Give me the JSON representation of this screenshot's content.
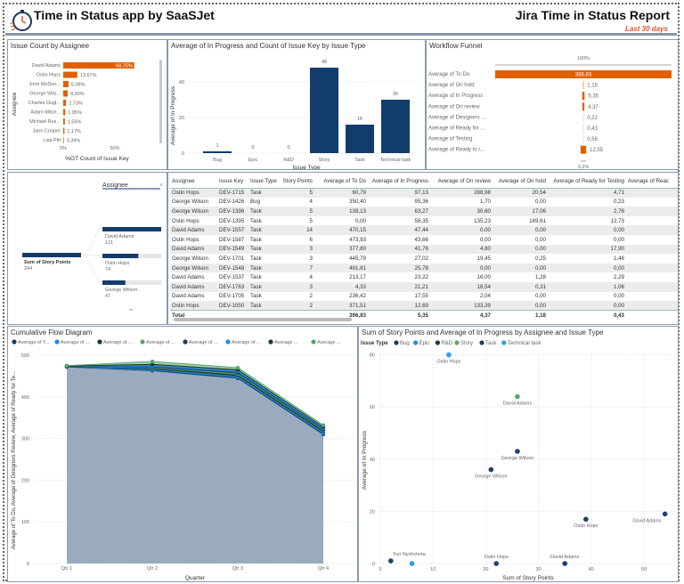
{
  "header": {
    "title": "Time in Status app by SaaSJet",
    "report_title": "Jira Time in Status Report",
    "period": "Last 30 days",
    "accent": "#e0502a"
  },
  "issue_count": {
    "title": "Issue Count by Assignee",
    "y_label": "Assignee",
    "x_label": "%GT Count of Issue Key",
    "ticks": [
      "0%",
      "50%"
    ],
    "bar_color": "#e06000",
    "items": [
      {
        "name": "David Adams",
        "pct": 68.75,
        "label": "68,75%"
      },
      {
        "name": "Ostin Hops",
        "pct": 13.67,
        "label": "13,67%"
      },
      {
        "name": "Jonh McDon...",
        "pct": 5.08,
        "label": "5,08%"
      },
      {
        "name": "George Wils...",
        "pct": 4.3,
        "label": "4,30%"
      },
      {
        "name": "Charles Dugl...",
        "pct": 2.73,
        "label": "2,73%"
      },
      {
        "name": "Adam Mitch...",
        "pct": 1.95,
        "label": "1,95%"
      },
      {
        "name": "Michael Rus...",
        "pct": 1.56,
        "label": "1,56%"
      },
      {
        "name": "Jane Cooper",
        "pct": 1.17,
        "label": "1,17%"
      },
      {
        "name": "Lisa Pitt",
        "pct": 0.39,
        "label": "0,39%"
      }
    ]
  },
  "issue_type_chart": {
    "title": "Average of In Progress and Count of Issue Key by Issue Type",
    "y_label": "Average of In Progress",
    "x_label": "Issue Type",
    "yticks": [
      "0",
      "20",
      "40"
    ],
    "bar_color": "#123c6b",
    "categories": [
      "Bug",
      "Epic",
      "R&D",
      "Story",
      "Task",
      "Technical task"
    ],
    "values": [
      1,
      0,
      0,
      48,
      16,
      30
    ],
    "labels": [
      "1",
      "0",
      "0",
      "48",
      "16",
      "30"
    ]
  },
  "funnel": {
    "title": "Workflow Funnel",
    "top_label": "100%",
    "bottom_label": "3,2%",
    "bar_color": "#e06000",
    "items": [
      {
        "name": "Average of To Do",
        "value": 396.83,
        "label": "396,83"
      },
      {
        "name": "Average of On hold",
        "value": 1.18,
        "label": "1,18"
      },
      {
        "name": "Average of In Progress",
        "value": 5.35,
        "label": "5,35"
      },
      {
        "name": "Average of On review",
        "value": 4.37,
        "label": "4,37"
      },
      {
        "name": "Average of Designers ...",
        "value": 0.22,
        "label": "0,22"
      },
      {
        "name": "Average of Ready for ...",
        "value": 0.43,
        "label": "0,43"
      },
      {
        "name": "Average of Testing",
        "value": 0.56,
        "label": "0,56"
      },
      {
        "name": "Average of Ready to r...",
        "value": 12.55,
        "label": "12,55"
      }
    ]
  },
  "decomp": {
    "level_title": "Assignee",
    "close": "×",
    "root": {
      "label": "Sum of Story Points",
      "value": "244"
    },
    "nodes": [
      {
        "name": "David Adams",
        "value": "121",
        "frac": 1.0
      },
      {
        "name": "Ostin Hops",
        "value": "74",
        "frac": 0.61
      },
      {
        "name": "George Wilson",
        "value": "47",
        "frac": 0.39
      }
    ],
    "more": "⌄"
  },
  "table": {
    "columns": [
      "Assignee",
      "Issue Key",
      "Issue Type",
      "Story Points",
      "Average of To Do",
      "Average of In Progress",
      "Average of On review",
      "Average of On hold",
      "Average of Ready for Testing",
      "Average of Reac"
    ],
    "rows": [
      [
        "Ostin Hops",
        "DEV-1715",
        "Task",
        "5",
        "60,79",
        "97,13",
        "288,98",
        "20,54",
        "4,71",
        ""
      ],
      [
        "George Wilson",
        "DEV-1426",
        "Bug",
        "4",
        "350,40",
        "95,36",
        "1,70",
        "0,00",
        "0,23",
        ""
      ],
      [
        "George Wilson",
        "DEV-1396",
        "Task",
        "5",
        "139,13",
        "63,27",
        "30,60",
        "17,06",
        "2,78",
        ""
      ],
      [
        "Ostin Hops",
        "DEV-1395",
        "Task",
        "5",
        "0,00",
        "58,35",
        "135,23",
        "169,61",
        "12,73",
        ""
      ],
      [
        "David Adams",
        "DEV-1557",
        "Task",
        "14",
        "470,15",
        "47,44",
        "0,00",
        "0,00",
        "0,00",
        ""
      ],
      [
        "Ostin Hops",
        "DEV-1587",
        "Task",
        "6",
        "473,93",
        "43,66",
        "0,00",
        "0,00",
        "0,00",
        ""
      ],
      [
        "David Adams",
        "DEV-1549",
        "Task",
        "3",
        "377,80",
        "41,76",
        "4,80",
        "0,00",
        "17,90",
        ""
      ],
      [
        "George Wilson",
        "DEV-1701",
        "Task",
        "3",
        "445,79",
        "27,02",
        "19,45",
        "0,25",
        "1,46",
        ""
      ],
      [
        "George Wilson",
        "DEV-1548",
        "Task",
        "7",
        "491,81",
        "25,78",
        "0,00",
        "0,00",
        "0,00",
        ""
      ],
      [
        "David Adams",
        "DEV-1537",
        "Task",
        "4",
        "213,17",
        "23,22",
        "16,00",
        "1,28",
        "2,29",
        ""
      ],
      [
        "David Adams",
        "DEV-1763",
        "Task",
        "3",
        "4,33",
        "21,21",
        "18,54",
        "0,31",
        "1,06",
        ""
      ],
      [
        "David Adams",
        "DEV-1705",
        "Task",
        "2",
        "236,42",
        "17,55",
        "2,04",
        "0,00",
        "0,00",
        ""
      ],
      [
        "Ostin Hops",
        "DEV-1050",
        "Task",
        "2",
        "371,51",
        "12,69",
        "133,39",
        "0,00",
        "0,00",
        ""
      ]
    ],
    "total": [
      "Total",
      "",
      "",
      "",
      "396,83",
      "5,35",
      "4,37",
      "1,18",
      "0,43",
      ""
    ]
  },
  "chart_data": [
    {
      "type": "area",
      "title": "Cumulative Flow Diagram",
      "xlabel": "Quarter",
      "ylabel": "Average of To Do, Average of Designers Review, Average of Ready for Te...",
      "ylim": [
        0,
        500
      ],
      "yticks": [
        0,
        100,
        200,
        300,
        400,
        500
      ],
      "grid": true,
      "legend": "top",
      "categories": [
        "Qtr 1",
        "Qtr 2",
        "Qtr 3",
        "Qtr 4"
      ],
      "series": [
        {
          "name": "Average of T...",
          "color": "#123c6b",
          "values": [
            472,
            463,
            445,
            310
          ]
        },
        {
          "name": "Average of ...",
          "color": "#1f8cf0",
          "values": [
            473,
            465,
            448,
            313
          ]
        },
        {
          "name": "Average of ...",
          "color": "#1b3a2f",
          "values": [
            473,
            468,
            452,
            318
          ]
        },
        {
          "name": "Average of ...",
          "color": "#5aa56f",
          "values": [
            474,
            470,
            455,
            320
          ]
        },
        {
          "name": "Average of ...",
          "color": "#123c6b",
          "values": [
            474,
            472,
            458,
            322
          ]
        },
        {
          "name": "Average of ...",
          "color": "#1f8cf0",
          "values": [
            474,
            474,
            462,
            325
          ]
        },
        {
          "name": "Average ...",
          "color": "#1b3a2f",
          "values": [
            474,
            478,
            465,
            328
          ]
        },
        {
          "name": "Average ...",
          "color": "#5aa56f",
          "values": [
            475,
            485,
            470,
            332
          ]
        }
      ]
    },
    {
      "type": "scatter",
      "title": "Sum of Story Points and Average of In Progress by Assignee and Issue Type",
      "xlabel": "Sum of Story Points",
      "ylabel": "Average of In Progress",
      "xlim": [
        0,
        55
      ],
      "ylim": [
        0,
        80
      ],
      "xticks": [
        0,
        10,
        20,
        30,
        40,
        50
      ],
      "yticks": [
        0,
        20,
        40,
        60,
        80
      ],
      "grid": true,
      "legend": "top-left",
      "legend_title": "Issue Type",
      "legend_items": [
        {
          "name": "Bug",
          "color": "#123c6b"
        },
        {
          "name": "Epic",
          "color": "#1f8cf0"
        },
        {
          "name": "R&D",
          "color": "#1b3a2f"
        },
        {
          "name": "Story",
          "color": "#5aa56f"
        },
        {
          "name": "Task",
          "color": "#1d3f6e"
        },
        {
          "name": "Technical task",
          "color": "#2a9df4"
        }
      ],
      "points": [
        {
          "x": 13,
          "y": 80,
          "label": "Ostin Hops",
          "type": "Technical task"
        },
        {
          "x": 26,
          "y": 64,
          "label": "David Adams",
          "type": "Story"
        },
        {
          "x": 26,
          "y": 43,
          "label": "George Wilson",
          "type": "Task"
        },
        {
          "x": 21,
          "y": 36,
          "label": "George Wilson",
          "type": "Task"
        },
        {
          "x": 54,
          "y": 19,
          "label": "David Adams",
          "type": "Task"
        },
        {
          "x": 39,
          "y": 17,
          "label": "Ostin Hops",
          "type": "Task"
        },
        {
          "x": 2,
          "y": 1,
          "label": "Yuri Nyshchota",
          "type": "Task"
        },
        {
          "x": 6,
          "y": 0,
          "label": "",
          "type": "Technical task"
        },
        {
          "x": 22,
          "y": 0,
          "label": "Ostin Hops",
          "type": "Task"
        },
        {
          "x": 35,
          "y": 0,
          "label": "David Adams",
          "type": "Task"
        }
      ]
    }
  ]
}
